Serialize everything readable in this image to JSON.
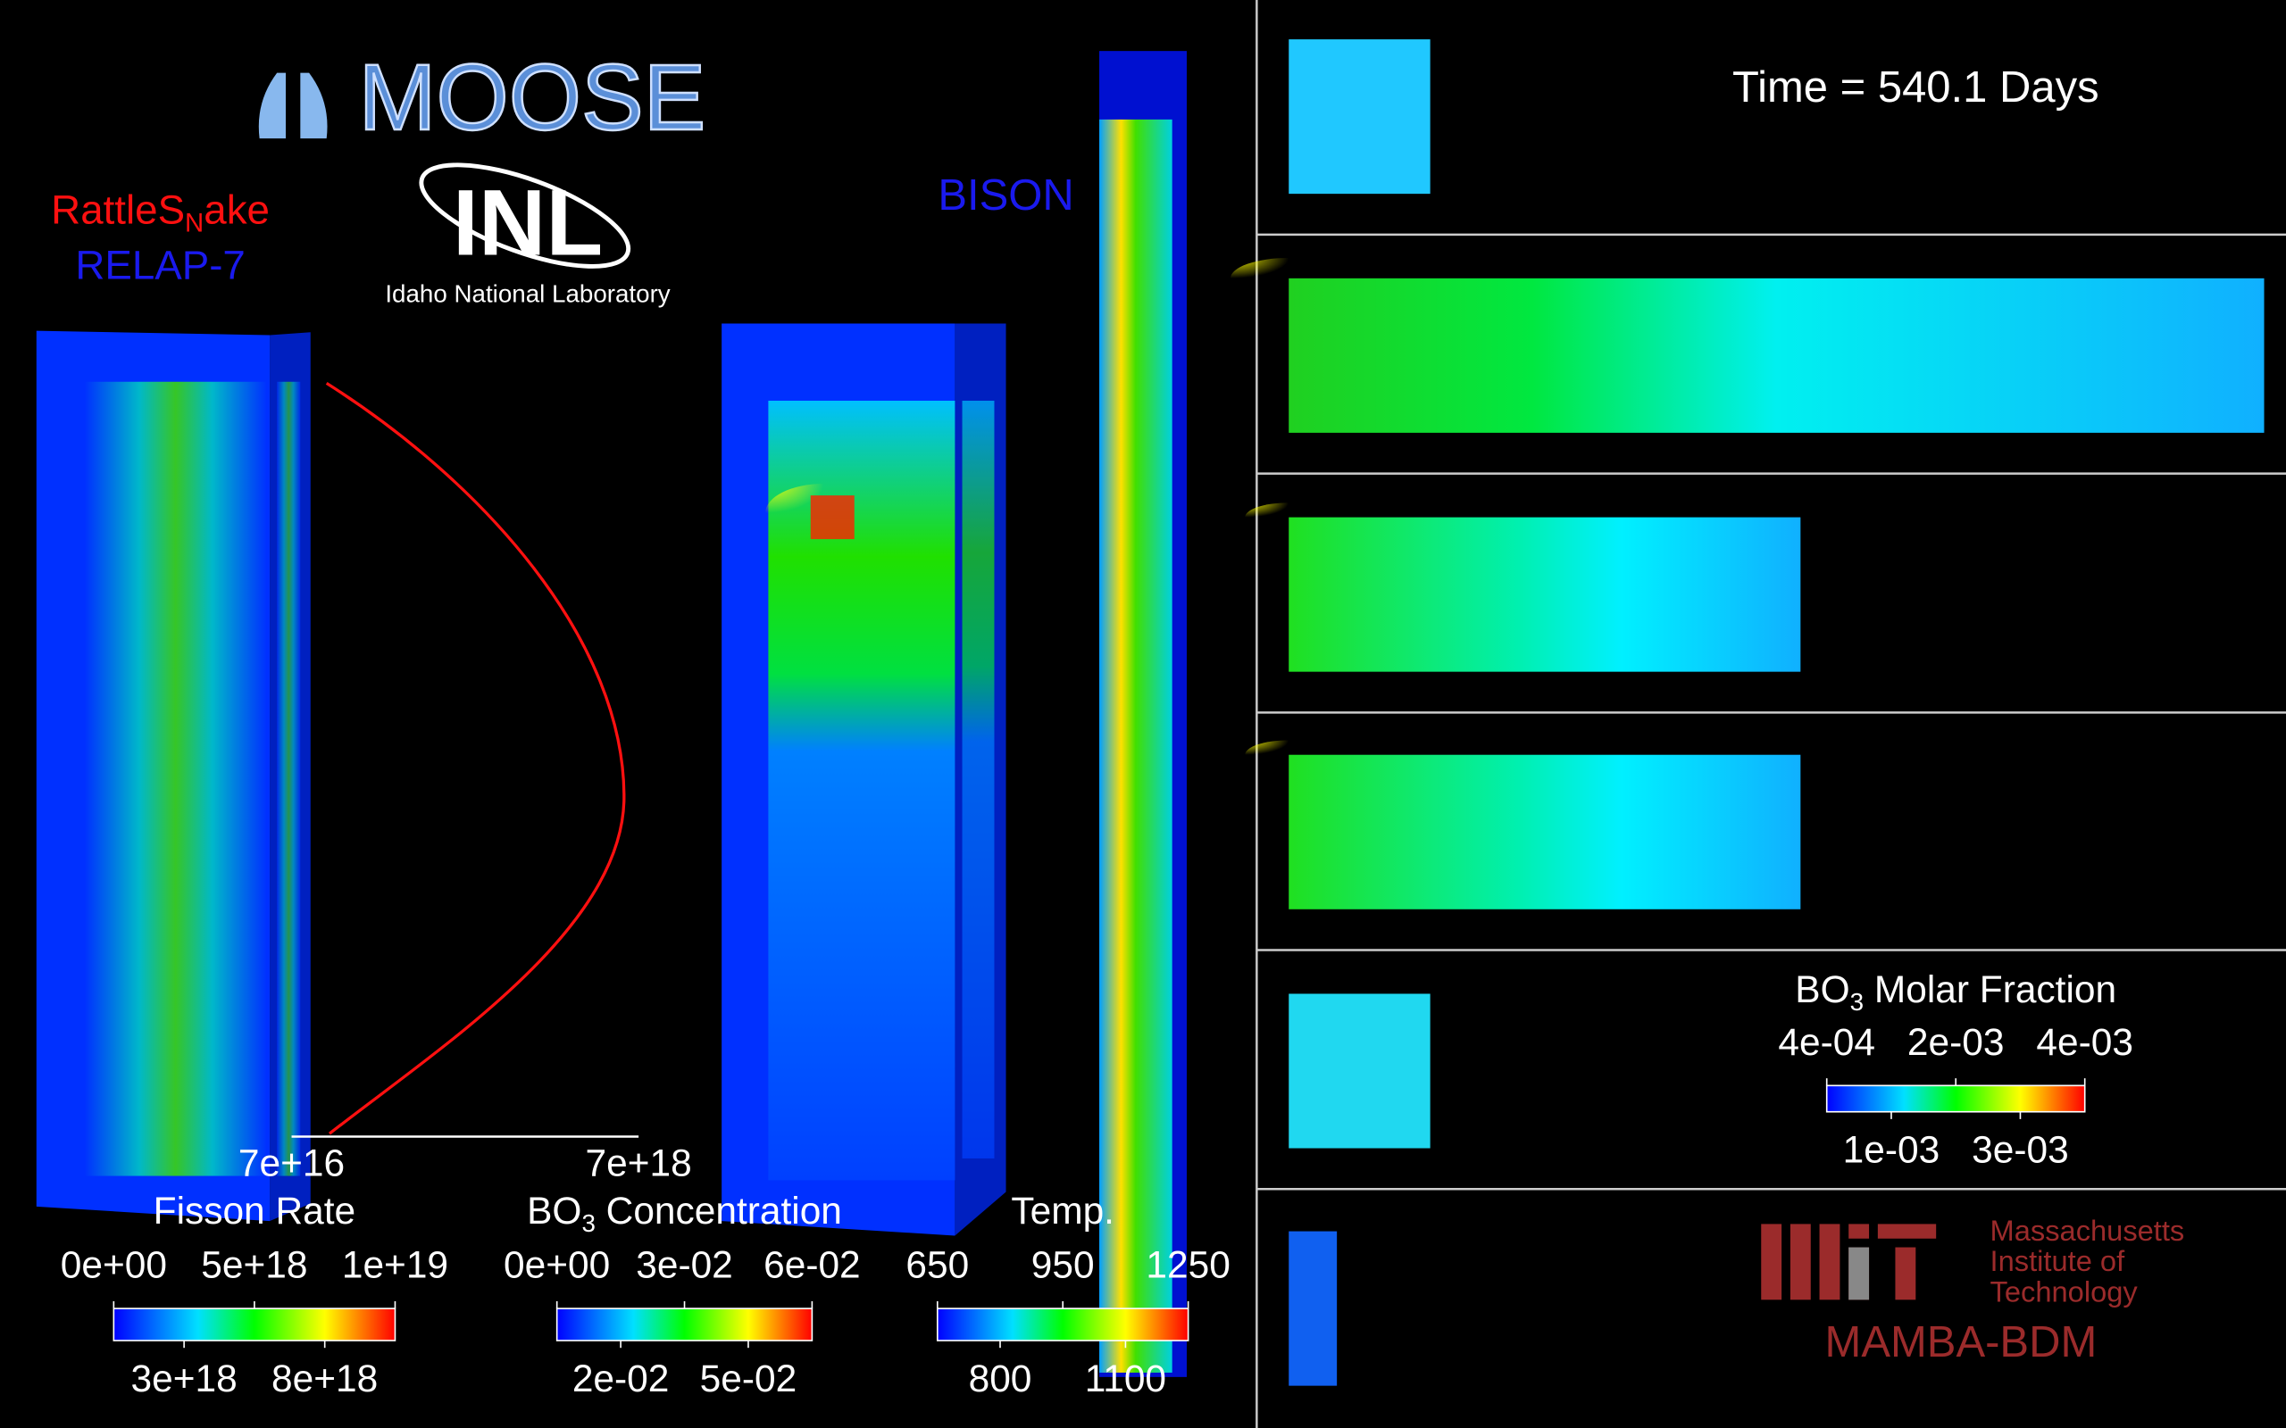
{
  "logos": {
    "moose": "MOOSE",
    "inl": "INL",
    "inl_name": "Idaho National Laboratory",
    "mit_name": [
      "Massachusetts",
      "Institute of",
      "Technology"
    ]
  },
  "codes": {
    "rattlesnake": [
      "RattleS",
      "N",
      "ake"
    ],
    "relap": "RELAP-7",
    "bison": "BISON",
    "mamba": "MAMBA-BDM"
  },
  "time_label": "Time = 540.1 Days",
  "flux_axis": {
    "min": "7e+16",
    "max": "7e+18"
  },
  "colorbars": [
    {
      "title": [
        "Fisson Rate"
      ],
      "top_ticks": [
        "0e+00",
        "5e+18",
        "1e+19"
      ],
      "bottom_ticks": [
        "3e+18",
        "8e+18"
      ]
    },
    {
      "title": [
        "BO",
        "3",
        " Concentration"
      ],
      "top_ticks": [
        "0e+00",
        "3e-02",
        "6e-02"
      ],
      "bottom_ticks": [
        "2e-02",
        "5e-02"
      ]
    },
    {
      "title": [
        "Temp."
      ],
      "top_ticks": [
        "650",
        "950",
        "1250"
      ],
      "bottom_ticks": [
        "800",
        "1100"
      ]
    },
    {
      "title": [
        "BO",
        "3",
        " Molar Fraction"
      ],
      "top_ticks": [
        "4e-04",
        "2e-03",
        "4e-03"
      ],
      "bottom_ticks": [
        "1e-03",
        "3e-03"
      ]
    }
  ]
}
